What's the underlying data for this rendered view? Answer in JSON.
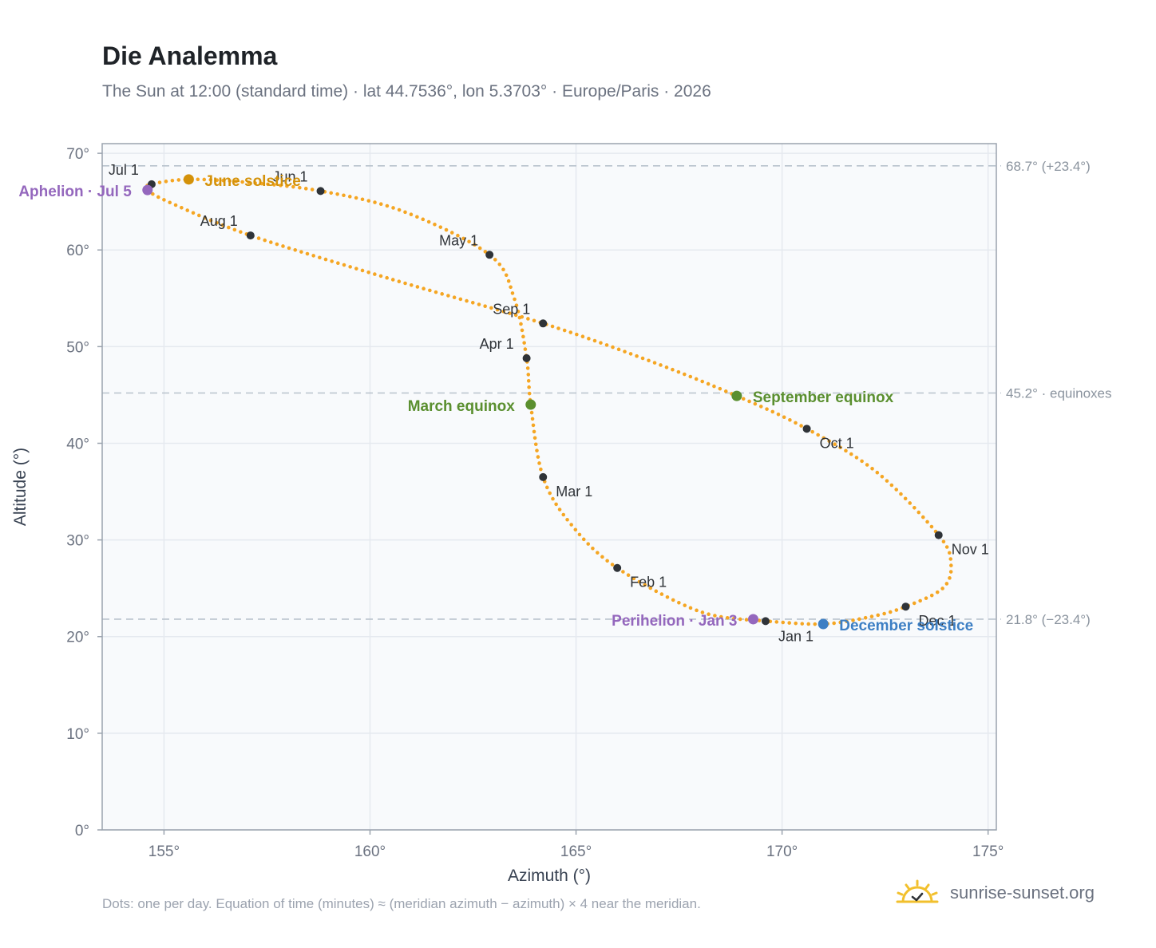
{
  "header": {
    "title": "Die Analemma",
    "subtitle": "The Sun at 12:00 (standard time) · lat 44.7536°, lon 5.3703° · Europe/Paris · 2026"
  },
  "footer": {
    "note": "Dots: one per day. Equation of time (minutes) ≈ (meridian azimuth − azimuth) × 4 near the meridian.",
    "brand": "sunrise-sunset.org"
  },
  "colors": {
    "curve": "#f5a623",
    "month_marker": "#2f3338",
    "solstice_june": "#d4920a",
    "equinox": "#5a8f2f",
    "solstice_december": "#3d7fc4",
    "apsis": "#9467bd",
    "reference_line": "#b8c2cc",
    "plot_background": "#f8fafc",
    "grid": "#e5e9ef",
    "axis": "#9aa3ae",
    "tick_text": "#6b7280",
    "brand_icon": "#f2c02d"
  },
  "chart_data": {
    "type": "scatter",
    "xlabel": "Azimuth (°)",
    "ylabel": "Altitude (°)",
    "xlim": [
      153.5,
      175.2
    ],
    "ylim": [
      0,
      71
    ],
    "grid": true,
    "x_ticks": [
      155,
      160,
      165,
      170,
      175
    ],
    "x_tick_labels": [
      "155°",
      "160°",
      "165°",
      "170°",
      "175°"
    ],
    "y_ticks": [
      0,
      10,
      20,
      30,
      40,
      50,
      60,
      70
    ],
    "y_tick_labels": [
      "0°",
      "10°",
      "20°",
      "30°",
      "40°",
      "50°",
      "60°",
      "70°"
    ],
    "reference_lines": [
      {
        "y": 68.7,
        "label": "68.7° (+23.4°)"
      },
      {
        "y": 45.2,
        "label": "45.2° · equinoxes"
      },
      {
        "y": 21.8,
        "label": "21.8° (−23.4°)"
      }
    ],
    "analemma_path": [
      {
        "az": 169.6,
        "alt": 21.6
      },
      {
        "az": 168.0,
        "alt": 22.6
      },
      {
        "az": 166.0,
        "alt": 27.1
      },
      {
        "az": 164.9,
        "alt": 31.5
      },
      {
        "az": 164.2,
        "alt": 36.5
      },
      {
        "az": 163.9,
        "alt": 44.0
      },
      {
        "az": 163.8,
        "alt": 48.8
      },
      {
        "az": 163.5,
        "alt": 55.0
      },
      {
        "az": 162.9,
        "alt": 59.5
      },
      {
        "az": 160.8,
        "alt": 64.0
      },
      {
        "az": 158.8,
        "alt": 66.1
      },
      {
        "az": 157.0,
        "alt": 67.0
      },
      {
        "az": 155.6,
        "alt": 67.3
      },
      {
        "az": 154.7,
        "alt": 66.8
      },
      {
        "az": 154.6,
        "alt": 66.2
      },
      {
        "az": 155.2,
        "alt": 64.8
      },
      {
        "az": 157.1,
        "alt": 61.5
      },
      {
        "az": 160.5,
        "alt": 57.0
      },
      {
        "az": 164.2,
        "alt": 52.4
      },
      {
        "az": 166.8,
        "alt": 48.5
      },
      {
        "az": 168.9,
        "alt": 44.9
      },
      {
        "az": 170.6,
        "alt": 41.5
      },
      {
        "az": 172.3,
        "alt": 37.0
      },
      {
        "az": 173.8,
        "alt": 30.5
      },
      {
        "az": 174.1,
        "alt": 27.5
      },
      {
        "az": 173.9,
        "alt": 25.0
      },
      {
        "az": 173.0,
        "alt": 23.1
      },
      {
        "az": 172.2,
        "alt": 22.1
      },
      {
        "az": 171.0,
        "alt": 21.3
      },
      {
        "az": 169.6,
        "alt": 21.6
      }
    ],
    "month_markers": [
      {
        "label": "Jan 1",
        "az": 169.6,
        "alt": 21.6,
        "anchor": "start",
        "dx": 16,
        "dy": 25
      },
      {
        "label": "Feb 1",
        "az": 166.0,
        "alt": 27.1,
        "anchor": "start",
        "dx": 16,
        "dy": 24
      },
      {
        "label": "Mar 1",
        "az": 164.2,
        "alt": 36.5,
        "anchor": "start",
        "dx": 16,
        "dy": 24
      },
      {
        "label": "Apr 1",
        "az": 163.8,
        "alt": 48.8,
        "anchor": "end",
        "dx": -16,
        "dy": -12
      },
      {
        "label": "May 1",
        "az": 162.9,
        "alt": 59.5,
        "anchor": "end",
        "dx": -14,
        "dy": -12
      },
      {
        "label": "Jun 1",
        "az": 158.8,
        "alt": 66.1,
        "anchor": "end",
        "dx": -16,
        "dy": -12
      },
      {
        "label": "Jul 1",
        "az": 154.7,
        "alt": 66.8,
        "anchor": "end",
        "dx": -16,
        "dy": -12
      },
      {
        "label": "Aug 1",
        "az": 157.1,
        "alt": 61.5,
        "anchor": "end",
        "dx": -16,
        "dy": -12
      },
      {
        "label": "Sep 1",
        "az": 164.2,
        "alt": 52.4,
        "anchor": "end",
        "dx": -16,
        "dy": -12
      },
      {
        "label": "Oct 1",
        "az": 170.6,
        "alt": 41.5,
        "anchor": "start",
        "dx": 16,
        "dy": 24
      },
      {
        "label": "Nov 1",
        "az": 173.8,
        "alt": 30.5,
        "anchor": "start",
        "dx": 16,
        "dy": 24
      },
      {
        "label": "Dec 1",
        "az": 173.0,
        "alt": 23.1,
        "anchor": "start",
        "dx": 16,
        "dy": 24
      }
    ],
    "events": [
      {
        "label": "June solstice",
        "az": 155.6,
        "alt": 67.3,
        "color": "#d4920a",
        "anchor": "start",
        "dx": 20,
        "dy": 8
      },
      {
        "label": "March equinox",
        "az": 163.9,
        "alt": 44.0,
        "color": "#5a8f2f",
        "anchor": "end",
        "dx": -20,
        "dy": 8
      },
      {
        "label": "September equinox",
        "az": 168.9,
        "alt": 44.9,
        "color": "#5a8f2f",
        "anchor": "start",
        "dx": 20,
        "dy": 8
      },
      {
        "label": "December solstice",
        "az": 171.0,
        "alt": 21.3,
        "color": "#3d7fc4",
        "anchor": "start",
        "dx": 20,
        "dy": 8
      },
      {
        "label": "Aphelion · Jul 5",
        "az": 154.6,
        "alt": 66.2,
        "color": "#9467bd",
        "anchor": "end",
        "dx": -20,
        "dy": 8
      },
      {
        "label": "Perihelion · Jan 3",
        "az": 169.3,
        "alt": 21.8,
        "color": "#9467bd",
        "anchor": "end",
        "dx": -20,
        "dy": 8
      }
    ]
  }
}
